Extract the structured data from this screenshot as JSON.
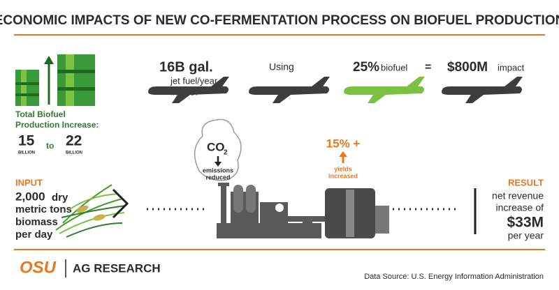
{
  "header": {
    "title": "ECONOMIC IMPACTS OF NEW CO-FERMENTATION PROCESS ON BIOFUEL PRODUCTION"
  },
  "production": {
    "label": [
      "Total Biofuel",
      "Production Increase:"
    ],
    "from": "15",
    "from_unit": "BILLION",
    "to": "to",
    "target": "22",
    "target_unit": "BILLION"
  },
  "jet_fuel": {
    "amount": "16B gal.",
    "description": [
      "jet fuel/year",
      "in U.S."
    ],
    "using": "Using",
    "share": "25%",
    "share_label": "biofuel",
    "equals": "=",
    "impact": "$800M",
    "impact_label": "impact"
  },
  "emissions": {
    "formula": "CO",
    "subscript": "2",
    "label": [
      "emissions",
      "reduced"
    ]
  },
  "yields": {
    "value": "15% +",
    "label": [
      "yields",
      "increased"
    ]
  },
  "input": {
    "heading": "INPUT",
    "amount": "2,000",
    "lines": [
      "dry",
      "metric tons",
      "biomass",
      "per day"
    ]
  },
  "result": {
    "heading": "RESULT",
    "lines": [
      "net revenue",
      "increase of"
    ],
    "amount": "$33M",
    "period": "per year"
  },
  "footer": {
    "logo": "OSU",
    "unit": "AG RESEARCH",
    "source": "Data Source: U.S. Energy Information Administration"
  }
}
